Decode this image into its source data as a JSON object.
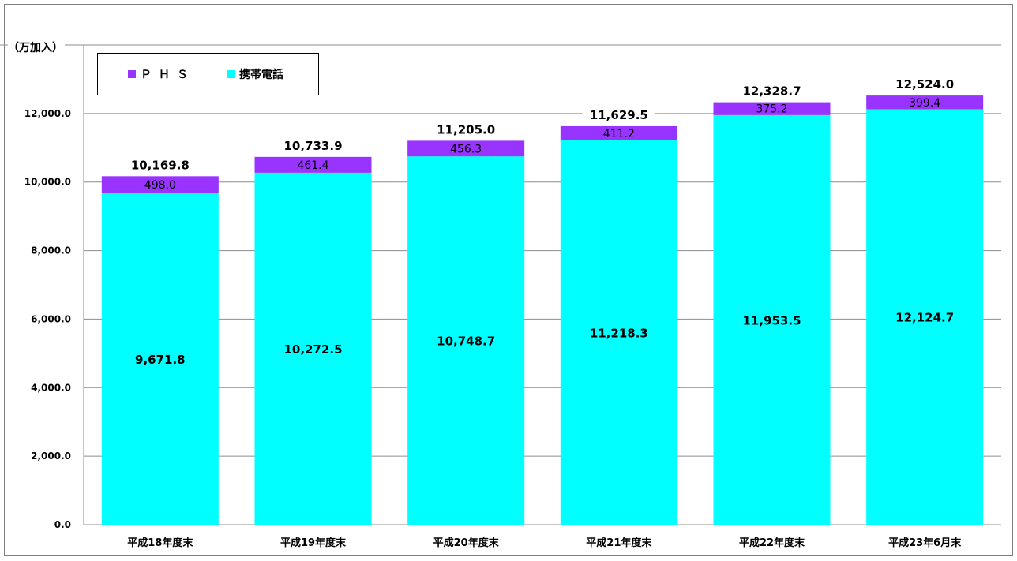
{
  "chart_data": {
    "type": "bar",
    "stacked": true,
    "title": "",
    "unit_label": "（万加入）",
    "categories": [
      "平成18年度末",
      "平成19年度末",
      "平成20年度末",
      "平成21年度末",
      "平成22年度末",
      "平成23年6月末"
    ],
    "series": [
      {
        "name": "携帯電話",
        "color": "#00ffff",
        "values": [
          9671.8,
          10272.5,
          10748.7,
          11218.3,
          11953.5,
          12124.7
        ],
        "labels": [
          "9,671.8",
          "10,272.5",
          "10,748.7",
          "11,218.3",
          "11,953.5",
          "12,124.7"
        ]
      },
      {
        "name": "ＰＨＳ",
        "color": "#9933ff",
        "values": [
          498.0,
          461.4,
          456.3,
          411.2,
          375.2,
          399.4
        ],
        "labels": [
          "498.0",
          "461.4",
          "456.3",
          "411.2",
          "375.2",
          "399.4"
        ]
      }
    ],
    "totals": [
      10169.8,
      10733.9,
      11205.0,
      11629.5,
      12328.7,
      12524.0
    ],
    "total_labels": [
      "10,169.8",
      "10,733.9",
      "11,205.0",
      "11,629.5",
      "12,328.7",
      "12,524.0"
    ],
    "ylim": [
      0,
      14000
    ],
    "yticks": [
      0,
      2000,
      4000,
      6000,
      8000,
      10000,
      12000
    ],
    "ytick_labels": [
      "0.0",
      "2,000.0",
      "4,000.0",
      "6,000.0",
      "8,000.0",
      "10,000.0",
      "12,000.0"
    ],
    "grid": true,
    "legend_position": "top-left"
  },
  "legend": {
    "items": [
      {
        "name": "ＰＨＳ",
        "color": "#9933ff"
      },
      {
        "name": "携帯電話",
        "color": "#00ffff"
      }
    ]
  }
}
